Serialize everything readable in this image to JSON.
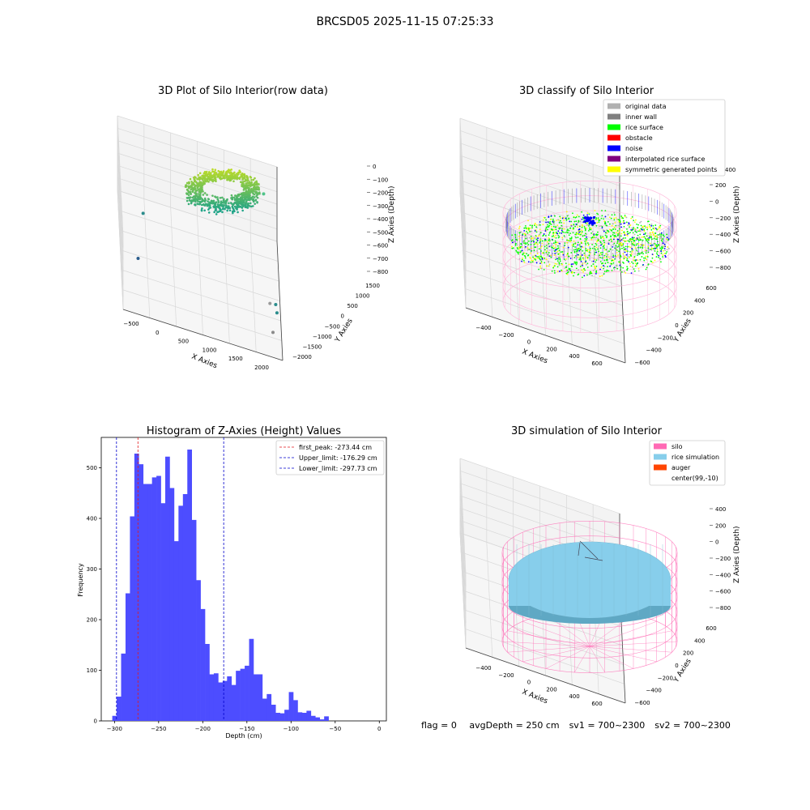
{
  "figure": {
    "suptitle": "BRCSD05 2025-11-15 07:25:33",
    "footer": {
      "flag": "flag = 0",
      "avg_depth": "avgDepth = 250 cm",
      "sv1": "sv1 = 700~2300",
      "sv2": "sv2 = 700~2300"
    }
  },
  "colors": {
    "grid": "#d8d8d8",
    "pane": "#f2f2f2",
    "hist_bar": "#4d4dff",
    "first_peak": "#e31a1c",
    "limits": "#0000cc",
    "silo": "#ff69b4",
    "rice_sim": "#87ceeb",
    "auger": "#ff4500",
    "orig": "#b0b0b0",
    "inner_wall": "#808080",
    "rice_surface": "#00ff00",
    "obstacle": "#ff0000",
    "noise": "#0000ff",
    "interp": "#800080",
    "symmetric": "#ffff00"
  },
  "chart_data": [
    {
      "type": "scatter",
      "title": "3D Plot of Silo Interior(row data)",
      "xlabel": "X Axies",
      "ylabel": "Y Axies",
      "zlabel": "Z Axies (Depth)",
      "x_ticks": [
        "−500",
        "0",
        "500",
        "1000",
        "1500",
        "2000"
      ],
      "y_ticks": [
        "1500",
        "1000",
        "500",
        "0",
        "−500",
        "−1000",
        "−1500",
        "−2000"
      ],
      "z_ticks": [
        "0",
        "−100",
        "−200",
        "−300",
        "−400",
        "−500",
        "−600",
        "−700",
        "−800"
      ],
      "surface_color_range": [
        "#c8e020",
        "#20a488"
      ],
      "outliers": [
        {
          "x": 1850,
          "y": 700,
          "z": -280,
          "color": "#4fc38a"
        },
        {
          "x": 1900,
          "y": -1500,
          "z": -580,
          "color": "#9a9a9a"
        },
        {
          "x": 2000,
          "y": -1400,
          "z": -600,
          "color": "#2a8c8c"
        },
        {
          "x": 2020,
          "y": -1450,
          "z": -650,
          "color": "#2a8c8c"
        },
        {
          "x": 1950,
          "y": -1550,
          "z": -790,
          "color": "#8a8a8a"
        },
        {
          "x": -200,
          "y": 300,
          "z": -640,
          "color": "#2a8c8c"
        },
        {
          "x": -300,
          "y": -300,
          "z": -860,
          "color": "#2a5c8c"
        }
      ]
    },
    {
      "type": "scatter",
      "title": "3D classify of Silo Interior",
      "xlabel": "X Axies",
      "ylabel": "Y Axies",
      "zlabel": "Z Axies (Depth)",
      "x_ticks": [
        "−400",
        "−200",
        "0",
        "200",
        "400",
        "600"
      ],
      "y_ticks": [
        "600",
        "400",
        "200",
        "0",
        "−200",
        "−400",
        "−600"
      ],
      "z_ticks": [
        "200",
        "0",
        "−200",
        "−400",
        "−600",
        "−800"
      ],
      "z_ticks_partial": [
        "400"
      ],
      "legend": [
        {
          "label": "original data",
          "color": "#b0b0b0"
        },
        {
          "label": "inner wall",
          "color": "#808080"
        },
        {
          "label": "rice surface",
          "color": "#00ff00"
        },
        {
          "label": "obstacle",
          "color": "#ff0000"
        },
        {
          "label": "noise",
          "color": "#0000ff"
        },
        {
          "label": "interpolated rice surface",
          "color": "#800080"
        },
        {
          "label": "symmetric generated points",
          "color": "#ffff00"
        }
      ]
    },
    {
      "type": "bar",
      "title": "Histogram of Z-Axies (Height) Values",
      "xlabel": "Depth (cm)",
      "ylabel": "Frequency",
      "xlim": [
        -315,
        8
      ],
      "ylim": [
        0,
        560
      ],
      "x_ticks": [
        -300,
        -250,
        -200,
        -150,
        -100,
        -50,
        0
      ],
      "y_ticks": [
        0,
        100,
        200,
        300,
        400,
        500
      ],
      "bin_start": -302.5,
      "bin_width": 5,
      "values": [
        10,
        48,
        133,
        252,
        404,
        528,
        507,
        468,
        468,
        481,
        484,
        430,
        522,
        460,
        355,
        425,
        448,
        536,
        397,
        278,
        221,
        152,
        92,
        94,
        76,
        79,
        88,
        71,
        99,
        103,
        109,
        162,
        92,
        92,
        44,
        53,
        32,
        16,
        15,
        22,
        57,
        41,
        17,
        16,
        20,
        10,
        7,
        3,
        9
      ],
      "vlines": [
        {
          "x": -273.44,
          "label": "first_peak: -273.44 cm",
          "style": "first_peak"
        },
        {
          "x": -176.29,
          "label": "Upper_limit: -176.29 cm",
          "style": "limits"
        },
        {
          "x": -297.73,
          "label": "Lower_limit: -297.73 cm",
          "style": "limits"
        }
      ]
    },
    {
      "type": "scatter",
      "title": "3D simulation of Silo Interior",
      "xlabel": "X Axies",
      "ylabel": "Y Axies",
      "zlabel": "Z Axies (Depth)",
      "x_ticks": [
        "−400",
        "−200",
        "0",
        "200",
        "400",
        "600"
      ],
      "y_ticks": [
        "600",
        "400",
        "200",
        "0",
        "−200",
        "−400",
        "−600"
      ],
      "z_ticks": [
        "400",
        "200",
        "0",
        "−200",
        "−400",
        "−600",
        "−800"
      ],
      "legend": [
        {
          "label": "silo",
          "color": "#ff69b4"
        },
        {
          "label": "rice simulation",
          "color": "#87ceeb"
        },
        {
          "label": "auger",
          "color": "#ff4500"
        },
        {
          "label": "center(99,-10)",
          "color": ""
        }
      ]
    }
  ]
}
